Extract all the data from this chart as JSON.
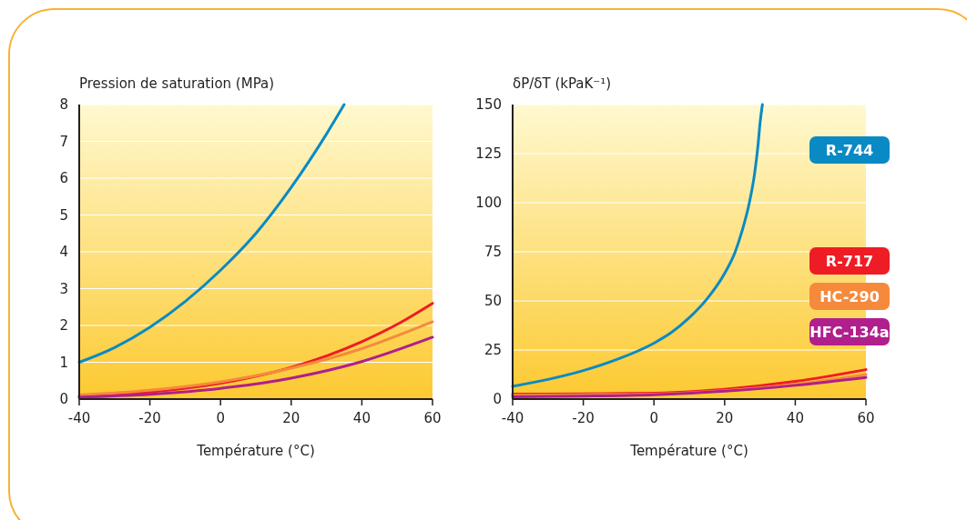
{
  "chart_data": [
    {
      "type": "line",
      "ylabel": "Pression de saturation (MPa)",
      "xlabel": "Température  (°C)",
      "xlim": [
        -40,
        60
      ],
      "xticks": [
        -40,
        -20,
        0,
        20,
        40,
        60
      ],
      "ylim": [
        0,
        8
      ],
      "yticks": [
        0,
        1,
        2,
        3,
        4,
        5,
        6,
        7,
        8
      ],
      "grid": "y",
      "legend": false,
      "series": [
        {
          "color": "#0a8ac4",
          "x": [
            -40,
            -30,
            -20,
            -10,
            0,
            10,
            20,
            30,
            35
          ],
          "values": [
            1.0,
            1.4,
            1.95,
            2.65,
            3.5,
            4.5,
            5.75,
            7.2,
            8.0
          ]
        },
        {
          "color": "#ee1c25",
          "x": [
            -40,
            -20,
            0,
            20,
            40,
            50,
            60
          ],
          "values": [
            0.07,
            0.19,
            0.43,
            0.86,
            1.56,
            2.03,
            2.6
          ]
        },
        {
          "color": "#f58a3c",
          "x": [
            -40,
            -20,
            0,
            20,
            40,
            60
          ],
          "values": [
            0.11,
            0.24,
            0.47,
            0.84,
            1.37,
            2.1
          ]
        },
        {
          "color": "#b01f8c",
          "x": [
            -40,
            -20,
            0,
            20,
            40,
            60
          ],
          "values": [
            0.05,
            0.13,
            0.29,
            0.57,
            1.02,
            1.68
          ]
        }
      ]
    },
    {
      "type": "line",
      "ylabel": "δP/δT (kPaK⁻¹)",
      "xlabel": "Température  (°C)",
      "xlim": [
        -40,
        60
      ],
      "xticks": [
        -40,
        -20,
        0,
        20,
        40,
        60
      ],
      "ylim": [
        0,
        150
      ],
      "yticks": [
        0,
        25,
        50,
        75,
        100,
        125,
        150
      ],
      "grid": "y",
      "legend": "right",
      "series": [
        {
          "name": "R-744",
          "color": "#0a8ac4",
          "x": [
            -40,
            -30,
            -20,
            -10,
            0,
            5,
            10,
            15,
            20,
            23,
            25,
            27,
            28.5,
            29.5,
            30,
            30.7
          ],
          "values": [
            6.5,
            10,
            14.5,
            20.5,
            28.5,
            34,
            41.5,
            51,
            64,
            75,
            86,
            100,
            115,
            130,
            140,
            150
          ]
        },
        {
          "name": "R-717",
          "color": "#ee1c25",
          "x": [
            -40,
            -20,
            0,
            20,
            40,
            60
          ],
          "values": [
            2.5,
            2.7,
            3,
            5,
            9,
            15
          ]
        },
        {
          "name": "HC-290",
          "color": "#f58a3c",
          "x": [
            -40,
            -20,
            0,
            20,
            40,
            60
          ],
          "values": [
            2,
            2.2,
            2.6,
            4.3,
            7.5,
            12.5
          ]
        },
        {
          "name": "HFC-134a",
          "color": "#b01f8c",
          "x": [
            -40,
            -20,
            0,
            20,
            40,
            60
          ],
          "values": [
            1.2,
            1.5,
            2.2,
            4,
            7,
            11
          ]
        }
      ]
    }
  ]
}
